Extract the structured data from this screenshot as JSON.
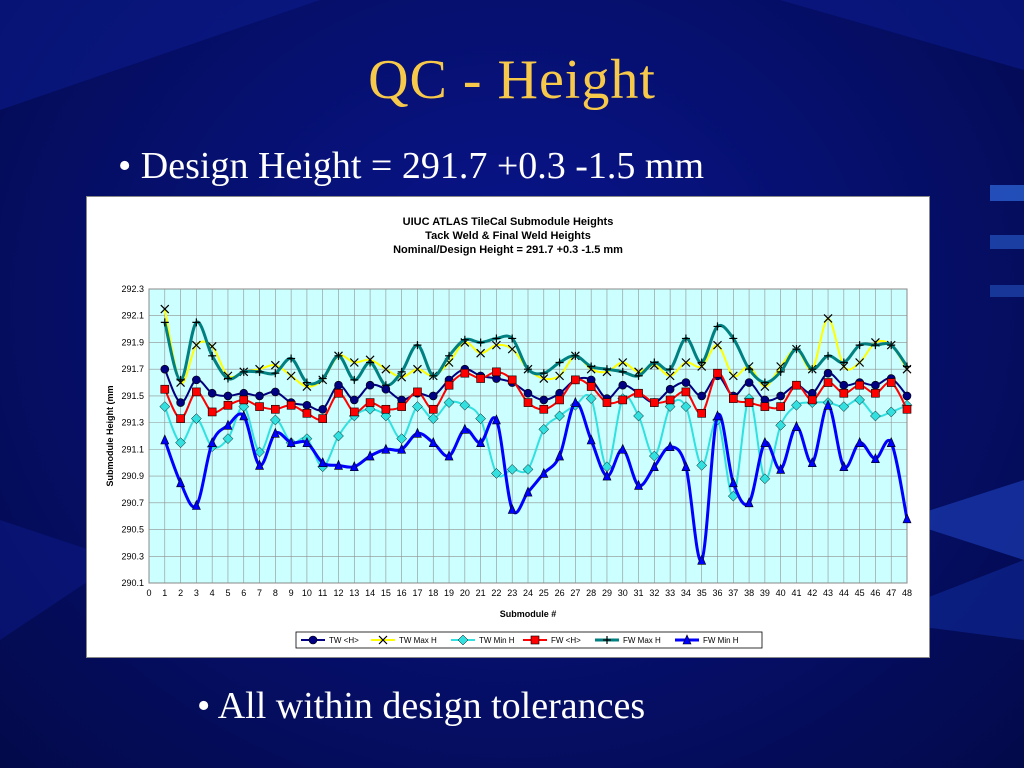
{
  "slide": {
    "title": "QC - Height",
    "bullet1": "• Design Height = 291.7 +0.3 -1.5 mm",
    "bullet2": "• All within design tolerances"
  },
  "colors": {
    "background": "#061070",
    "title": "#f7c94a",
    "text": "#ffffff",
    "plot_area": "#ccffff"
  },
  "chart_data": {
    "type": "line",
    "title_lines": [
      "UIUC ATLAS TileCal Submodule Heights",
      "Tack Weld & Final Weld Heights",
      "Nominal/Design Height = 291.7 +0.3 -1.5 mm"
    ],
    "xlabel": "Submodule #",
    "ylabel": "Submodule Height (mm",
    "xlim": [
      0,
      48
    ],
    "ylim": [
      290.1,
      292.3
    ],
    "yticks": [
      "290.1",
      "290.3",
      "290.5",
      "290.7",
      "290.9",
      "291.1",
      "291.3",
      "291.5",
      "291.7",
      "291.9",
      "292.1",
      "292.3"
    ],
    "xticks": [
      "0",
      "1",
      "2",
      "3",
      "4",
      "5",
      "6",
      "7",
      "8",
      "9",
      "10",
      "11",
      "12",
      "13",
      "14",
      "15",
      "16",
      "17",
      "18",
      "19",
      "20",
      "21",
      "22",
      "23",
      "24",
      "25",
      "26",
      "27",
      "28",
      "29",
      "30",
      "31",
      "32",
      "33",
      "34",
      "35",
      "36",
      "37",
      "38",
      "39",
      "40",
      "41",
      "42",
      "43",
      "44",
      "45",
      "46",
      "47",
      "48"
    ],
    "grid": true,
    "legend_position": "bottom",
    "x": [
      1,
      2,
      3,
      4,
      5,
      6,
      7,
      8,
      9,
      10,
      11,
      12,
      13,
      14,
      15,
      16,
      17,
      18,
      19,
      20,
      21,
      22,
      23,
      24,
      25,
      26,
      27,
      28,
      29,
      30,
      31,
      32,
      33,
      34,
      35,
      36,
      37,
      38,
      39,
      40,
      41,
      42,
      43,
      44,
      45,
      46,
      47,
      48
    ],
    "series": [
      {
        "name": "TW <H>",
        "color": "#000080",
        "marker": "circle",
        "width": 2,
        "values": [
          291.7,
          291.45,
          291.62,
          291.52,
          291.5,
          291.52,
          291.5,
          291.53,
          291.45,
          291.43,
          291.4,
          291.58,
          291.47,
          291.58,
          291.55,
          291.47,
          291.52,
          291.5,
          291.62,
          291.7,
          291.65,
          291.63,
          291.6,
          291.52,
          291.47,
          291.52,
          291.62,
          291.62,
          291.48,
          291.58,
          291.52,
          291.45,
          291.55,
          291.6,
          291.5,
          291.65,
          291.5,
          291.6,
          291.47,
          291.5,
          291.58,
          291.52,
          291.67,
          291.58,
          291.6,
          291.58,
          291.63,
          291.5
        ]
      },
      {
        "name": "TW Max H",
        "color": "#ffff00",
        "marker": "x",
        "width": 2,
        "values": [
          292.15,
          291.6,
          291.88,
          291.87,
          291.65,
          291.68,
          291.7,
          291.73,
          291.65,
          291.57,
          291.62,
          291.8,
          291.75,
          291.77,
          291.7,
          291.64,
          291.7,
          291.65,
          291.75,
          291.9,
          291.82,
          291.88,
          291.85,
          291.7,
          291.63,
          291.65,
          291.8,
          291.7,
          291.68,
          291.75,
          291.68,
          291.73,
          291.65,
          291.75,
          291.72,
          291.88,
          291.65,
          291.72,
          291.57,
          291.72,
          291.85,
          291.7,
          292.08,
          291.72,
          291.75,
          291.9,
          291.88,
          291.7
        ]
      },
      {
        "name": "TW Min H",
        "color": "#33e0e0",
        "marker": "diamond",
        "width": 2,
        "values": [
          291.42,
          291.15,
          291.33,
          291.12,
          291.18,
          291.42,
          291.08,
          291.32,
          291.15,
          291.18,
          290.97,
          291.2,
          291.35,
          291.4,
          291.35,
          291.18,
          291.42,
          291.33,
          291.45,
          291.43,
          291.33,
          290.92,
          290.95,
          290.95,
          291.25,
          291.35,
          291.43,
          291.48,
          290.97,
          291.48,
          291.35,
          291.05,
          291.42,
          291.42,
          290.98,
          291.32,
          290.75,
          291.48,
          290.88,
          291.28,
          291.43,
          291.45,
          291.45,
          291.42,
          291.47,
          291.35,
          291.38,
          291.43
        ]
      },
      {
        "name": "FW <H>",
        "color": "#ff0000",
        "marker": "square",
        "width": 2,
        "values": [
          291.55,
          291.33,
          291.53,
          291.38,
          291.43,
          291.47,
          291.42,
          291.4,
          291.43,
          291.37,
          291.33,
          291.52,
          291.38,
          291.45,
          291.4,
          291.42,
          291.53,
          291.4,
          291.58,
          291.67,
          291.63,
          291.68,
          291.62,
          291.45,
          291.4,
          291.47,
          291.62,
          291.57,
          291.45,
          291.47,
          291.52,
          291.45,
          291.47,
          291.53,
          291.37,
          291.67,
          291.48,
          291.45,
          291.42,
          291.42,
          291.58,
          291.47,
          291.6,
          291.52,
          291.58,
          291.52,
          291.6,
          291.4
        ]
      },
      {
        "name": "FW Max H",
        "color": "#008080",
        "marker": "plus",
        "width": 3,
        "values": [
          292.05,
          291.62,
          292.05,
          291.8,
          291.63,
          291.68,
          291.68,
          291.67,
          291.78,
          291.6,
          291.63,
          291.8,
          291.62,
          291.75,
          291.58,
          291.68,
          291.88,
          291.65,
          291.8,
          291.92,
          291.9,
          291.93,
          291.93,
          291.7,
          291.67,
          291.75,
          291.8,
          291.72,
          291.7,
          291.68,
          291.65,
          291.75,
          291.7,
          291.93,
          291.75,
          292.02,
          291.93,
          291.7,
          291.6,
          291.68,
          291.85,
          291.7,
          291.8,
          291.75,
          291.88,
          291.88,
          291.88,
          291.72
        ]
      },
      {
        "name": "FW Min H",
        "color": "#0000ff",
        "marker": "triangle",
        "width": 3,
        "values": [
          291.17,
          290.85,
          290.68,
          291.15,
          291.28,
          291.35,
          290.98,
          291.22,
          291.15,
          291.15,
          291.0,
          290.98,
          290.97,
          291.05,
          291.1,
          291.1,
          291.22,
          291.15,
          291.05,
          291.25,
          291.15,
          291.32,
          290.65,
          290.78,
          290.92,
          291.05,
          291.45,
          291.17,
          290.9,
          291.1,
          290.83,
          290.97,
          291.12,
          290.97,
          290.27,
          291.35,
          290.85,
          290.7,
          291.15,
          290.95,
          291.27,
          291.0,
          291.43,
          290.97,
          291.15,
          291.03,
          291.15,
          290.58
        ]
      }
    ]
  }
}
